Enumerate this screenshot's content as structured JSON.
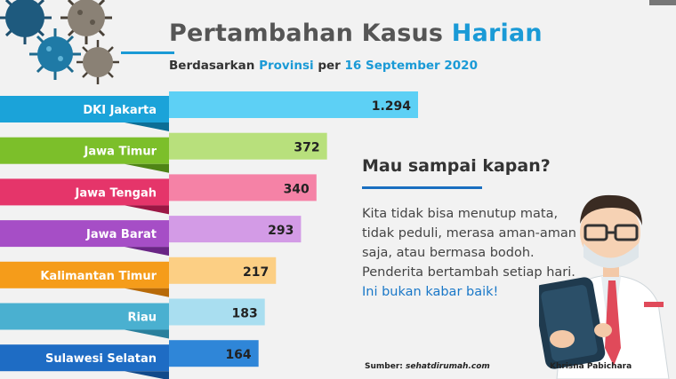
{
  "header": {
    "title_main": "Pertambahan Kasus ",
    "title_highlight": "Harian",
    "subtitle_prefix": "Berdasarkan ",
    "subtitle_highlight1": "Provinsi",
    "subtitle_mid": " per ",
    "subtitle_highlight2": "16 September 2020"
  },
  "chart_data": {
    "type": "bar",
    "orientation": "horizontal",
    "categories": [
      "DKI Jakarta",
      "Jawa Timur",
      "Jawa Tengah",
      "Jawa Barat",
      "Kalimantan Timur",
      "Riau",
      "Sulawesi Selatan"
    ],
    "values": [
      1294,
      372,
      340,
      293,
      217,
      183,
      164
    ],
    "value_labels": [
      "1.294",
      "372",
      "340",
      "293",
      "217",
      "183",
      "164"
    ],
    "colors": [
      {
        "label": "#1ba3d9",
        "bar": "#5dd0f5",
        "fold": "#0c6e96"
      },
      {
        "label": "#7cbf2a",
        "bar": "#b8e07c",
        "fold": "#4f8416"
      },
      {
        "label": "#e5356a",
        "bar": "#f582a6",
        "fold": "#9b1744"
      },
      {
        "label": "#a64ec6",
        "bar": "#d39be6",
        "fold": "#6a2585"
      },
      {
        "label": "#f59c1a",
        "bar": "#fccf84",
        "fold": "#b86a08"
      },
      {
        "label": "#4ab0d0",
        "bar": "#a9def0",
        "fold": "#2a7f9c"
      },
      {
        "label": "#1e6cc4",
        "bar": "#2f86d8",
        "fold": "#124a8a"
      }
    ],
    "bar_scale_note": "bars not drawn to linear scale"
  },
  "panel": {
    "heading": "Mau sampai kapan?",
    "lines": [
      "Kita tidak bisa menutup mata,",
      "tidak peduli, merasa aman-aman",
      "saja, atau bermasa bodoh.",
      "Penderita bertambah setiap hari."
    ],
    "accent_line": "Ini bukan kabar baik!"
  },
  "footer": {
    "source_label": "Sumber: ",
    "source_value": "sehatdirumah.com",
    "author": "Khrisna Pabichara"
  }
}
